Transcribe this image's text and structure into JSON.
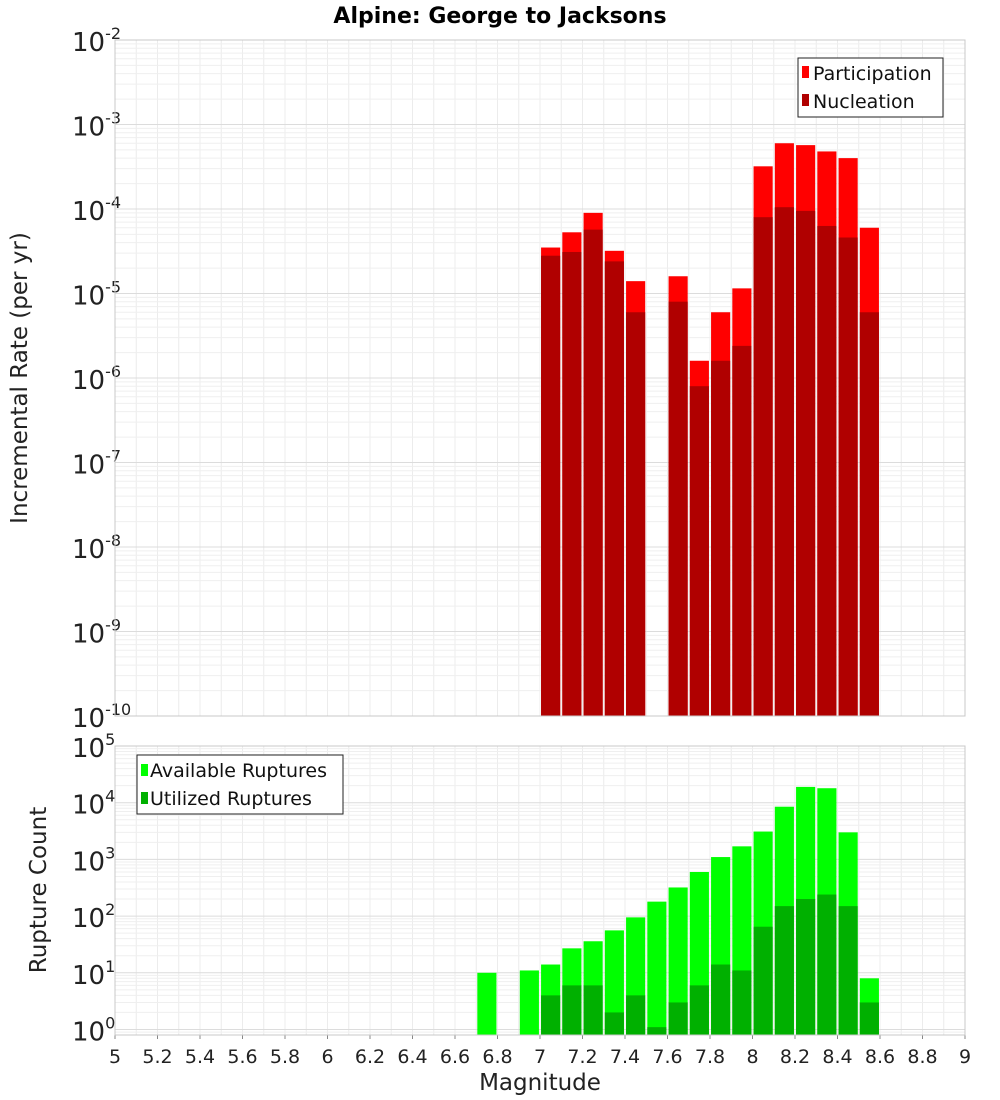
{
  "chart_data": [
    {
      "type": "bar",
      "title": "Alpine: George to Jacksons",
      "ylabel": "Incremental Rate (per yr)",
      "y_scale": "log",
      "ylim": [
        1e-10,
        0.01
      ],
      "y_ticks": [
        {
          "base": "10",
          "exp": "-2"
        },
        {
          "base": "10",
          "exp": "-3"
        },
        {
          "base": "10",
          "exp": "-4"
        },
        {
          "base": "10",
          "exp": "-5"
        },
        {
          "base": "10",
          "exp": "-6"
        },
        {
          "base": "10",
          "exp": "-7"
        },
        {
          "base": "10",
          "exp": "-8"
        },
        {
          "base": "10",
          "exp": "-9"
        },
        {
          "base": "10",
          "exp": "-10"
        }
      ],
      "xlim": [
        5,
        9
      ],
      "grid": true,
      "legend_position": "top-right",
      "colors": {
        "Participation": "#ff0000",
        "Nucleation": "#b00000"
      },
      "x": [
        7.05,
        7.15,
        7.25,
        7.35,
        7.45,
        7.65,
        7.75,
        7.85,
        7.95,
        8.05,
        8.15,
        8.25,
        8.35,
        8.45,
        8.55
      ],
      "series": [
        {
          "name": "Participation",
          "values": [
            3.5e-05,
            5.3e-05,
            9e-05,
            3.2e-05,
            1.4e-05,
            1.6e-05,
            1.6e-06,
            6e-06,
            1.15e-05,
            0.00032,
            0.0006,
            0.00057,
            0.00048,
            0.0004,
            6e-05
          ]
        },
        {
          "name": "Nucleation",
          "values": [
            2.8e-05,
            3.1e-05,
            5.7e-05,
            2.4e-05,
            6e-06,
            8e-06,
            8e-07,
            1.6e-06,
            2.4e-06,
            8e-05,
            0.000105,
            9.5e-05,
            6.3e-05,
            4.6e-05,
            6e-06
          ]
        }
      ]
    },
    {
      "type": "bar",
      "xlabel": "Magnitude",
      "ylabel": "Rupture Count",
      "y_scale": "log",
      "ylim": [
        0.8,
        100000
      ],
      "y_ticks": [
        {
          "base": "10",
          "exp": "5"
        },
        {
          "base": "10",
          "exp": "4"
        },
        {
          "base": "10",
          "exp": "3"
        },
        {
          "base": "10",
          "exp": "2"
        },
        {
          "base": "10",
          "exp": "1"
        },
        {
          "base": "10",
          "exp": "0"
        }
      ],
      "xlim": [
        5,
        9
      ],
      "x_ticks": [
        "5",
        "5.2",
        "5.4",
        "5.6",
        "5.8",
        "6",
        "6.2",
        "6.4",
        "6.6",
        "6.8",
        "7",
        "7.2",
        "7.4",
        "7.6",
        "7.8",
        "8",
        "8.2",
        "8.4",
        "8.6",
        "8.8",
        "9"
      ],
      "grid": true,
      "legend_position": "top-left",
      "colors": {
        "Available Ruptures": "#00ff00",
        "Utilized Ruptures": "#00b000"
      },
      "x": [
        6.75,
        6.95,
        7.05,
        7.15,
        7.25,
        7.35,
        7.45,
        7.55,
        7.65,
        7.75,
        7.85,
        7.95,
        8.05,
        8.15,
        8.25,
        8.35,
        8.45,
        8.55
      ],
      "series": [
        {
          "name": "Available Ruptures",
          "values": [
            10,
            11,
            14,
            27,
            36,
            56,
            95,
            180,
            320,
            600,
            1100,
            1700,
            3100,
            8500,
            19000,
            18000,
            3000,
            8
          ]
        },
        {
          "name": "Utilized Ruptures",
          "values": [
            null,
            null,
            4,
            6,
            6,
            2,
            4,
            1.1,
            3,
            6,
            14,
            11,
            65,
            150,
            200,
            240,
            150,
            3
          ]
        }
      ]
    }
  ]
}
